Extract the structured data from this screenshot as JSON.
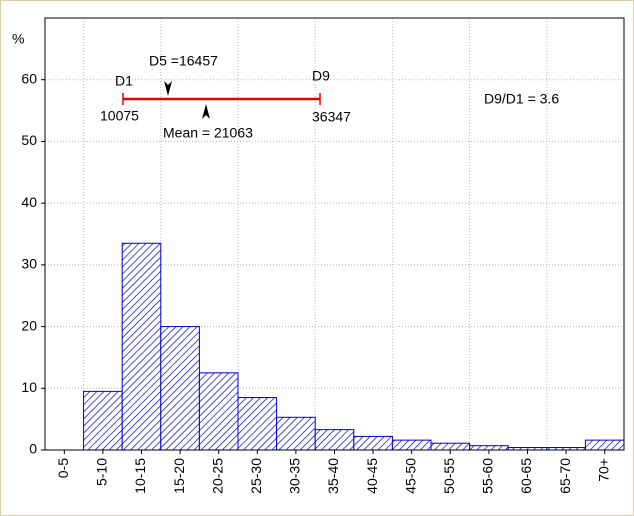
{
  "chart_data": {
    "type": "bar",
    "y_label": "%",
    "categories": [
      "0-5",
      "5-10",
      "10-15",
      "15-20",
      "20-25",
      "25-30",
      "30-35",
      "35-40",
      "40-45",
      "45-50",
      "50-55",
      "55-60",
      "60-65",
      "65-70",
      "70+"
    ],
    "values": [
      0,
      9.5,
      33.5,
      20,
      12.5,
      8.5,
      5.3,
      3.3,
      2.2,
      1.6,
      1.1,
      0.7,
      0.4,
      0.4,
      1.6
    ],
    "color": "#0000cc",
    "ylim": [
      0,
      70
    ],
    "yticks": [
      0,
      10,
      20,
      30,
      40,
      50,
      60
    ],
    "grid": true,
    "annotations": {
      "d1": {
        "label": "D1",
        "value": 10075
      },
      "d9": {
        "label": "D9",
        "value": 36347
      },
      "d5": {
        "text": "D5 =16457"
      },
      "mean": {
        "text": "Mean = 21063"
      },
      "ratio": {
        "text": "D9/D1 = 3.6"
      },
      "line_color": "#ee0000"
    }
  }
}
